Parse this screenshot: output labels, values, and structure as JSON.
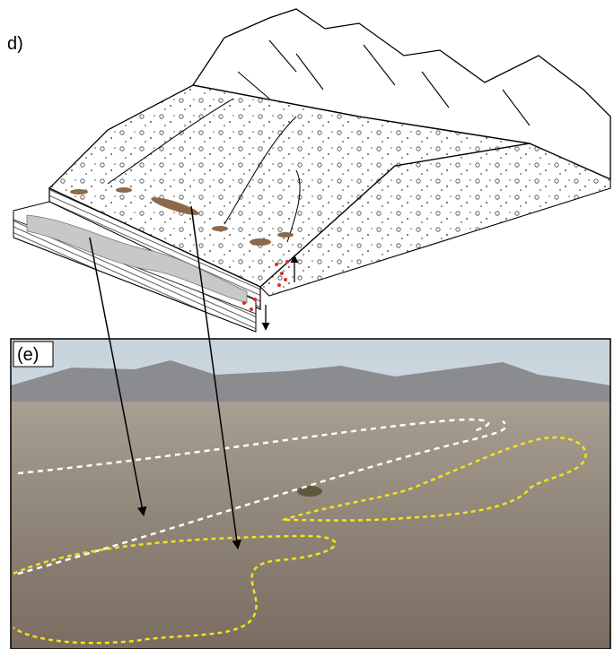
{
  "panels": [
    {
      "label": "d)"
    },
    {
      "label": "(e)"
    }
  ]
}
